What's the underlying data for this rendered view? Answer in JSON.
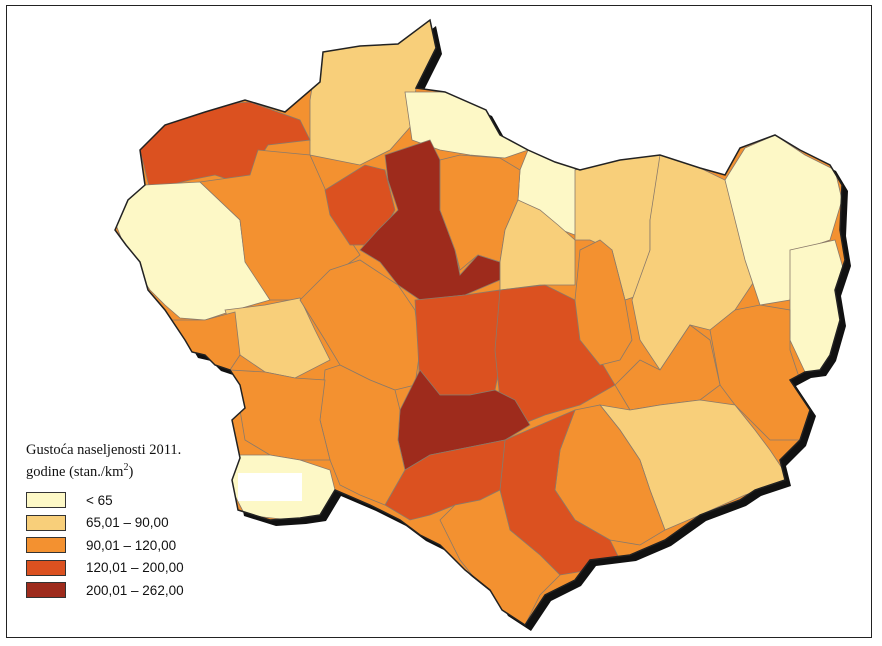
{
  "legend": {
    "title_line1": "Gustoća naseljenosti 2011.",
    "title_line2": "godine (stan./km",
    "title_sup": "2",
    "title_end": ")",
    "classes": [
      {
        "label": "< 65",
        "color": "#fdf8c6"
      },
      {
        "label": "65,01 – 90,00",
        "color": "#f8cf7a"
      },
      {
        "label": "90,01 – 120,00",
        "color": "#f39130"
      },
      {
        "label": "120,01 – 200,00",
        "color": "#db5120"
      },
      {
        "label": "200,01 – 262,00",
        "color": "#9e2b1c"
      }
    ]
  }
}
